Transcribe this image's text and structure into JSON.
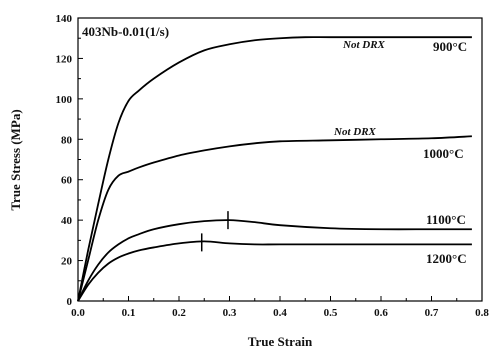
{
  "chart_data": {
    "type": "line",
    "title": "403Nb-0.01(1/s)",
    "xlabel": "True Strain",
    "ylabel": "True Stress (MPa)",
    "xlim": [
      0,
      0.8
    ],
    "ylim": [
      0,
      140
    ],
    "xticks": [
      "0.0",
      "0.1",
      "0.2",
      "0.3",
      "0.4",
      "0.5",
      "0.6",
      "0.7",
      "0.8"
    ],
    "yticks": [
      "0",
      "20",
      "40",
      "60",
      "80",
      "100",
      "120",
      "140"
    ],
    "grid": false,
    "series": [
      {
        "name": "900°C",
        "x": [
          0,
          0.02,
          0.04,
          0.06,
          0.08,
          0.1,
          0.12,
          0.15,
          0.2,
          0.25,
          0.3,
          0.35,
          0.4,
          0.45,
          0.5,
          0.6,
          0.7,
          0.78
        ],
        "y": [
          0,
          25,
          48,
          70,
          88,
          99,
          104,
          110,
          118,
          124,
          127,
          129,
          130,
          130.5,
          130.5,
          130.5,
          130.5,
          130.5
        ]
      },
      {
        "name": "1000°C",
        "x": [
          0,
          0.02,
          0.04,
          0.06,
          0.08,
          0.1,
          0.12,
          0.15,
          0.2,
          0.25,
          0.3,
          0.35,
          0.4,
          0.5,
          0.6,
          0.7,
          0.78
        ],
        "y": [
          0,
          20,
          40,
          55,
          62,
          64,
          66,
          68.5,
          72,
          74.5,
          76.5,
          78,
          79,
          79.5,
          80,
          80.5,
          81.5
        ]
      },
      {
        "name": "1100°C",
        "x": [
          0,
          0.02,
          0.04,
          0.06,
          0.08,
          0.1,
          0.12,
          0.15,
          0.2,
          0.25,
          0.3,
          0.35,
          0.4,
          0.5,
          0.6,
          0.7,
          0.78
        ],
        "y": [
          0,
          10,
          18,
          24,
          28,
          31,
          33,
          35.5,
          38,
          39.5,
          40,
          39,
          37.5,
          36,
          35.5,
          35.5,
          35.5
        ]
      },
      {
        "name": "1200°C",
        "x": [
          0,
          0.02,
          0.04,
          0.06,
          0.08,
          0.1,
          0.12,
          0.15,
          0.2,
          0.25,
          0.3,
          0.35,
          0.4,
          0.5,
          0.6,
          0.7,
          0.78
        ],
        "y": [
          0,
          8,
          14,
          18.5,
          21.5,
          23.5,
          25,
          26.5,
          28.5,
          29.5,
          28.5,
          28,
          28,
          28,
          28,
          28,
          28
        ]
      }
    ],
    "annotations": [
      {
        "text": "Not DRX",
        "series": "900°C"
      },
      {
        "text": "Not DRX",
        "series": "1000°C"
      }
    ],
    "peak_markers": [
      {
        "series": "1100°C",
        "x": 0.297,
        "y": 40
      },
      {
        "series": "1200°C",
        "x": 0.245,
        "y": 29
      }
    ]
  }
}
